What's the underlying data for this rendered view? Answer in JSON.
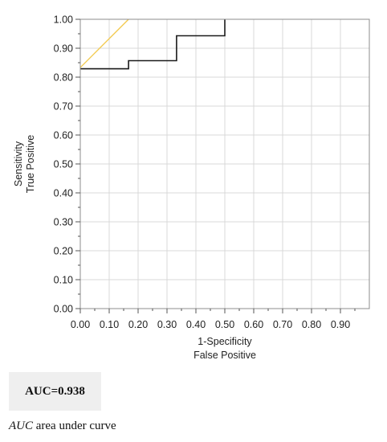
{
  "chart_data": {
    "type": "line",
    "xlabel_lines": [
      "1-Specificity",
      "False Positive"
    ],
    "ylabel_lines": [
      "Sensitivity",
      "True Positive"
    ],
    "xlim": [
      0,
      1
    ],
    "ylim": [
      0,
      1
    ],
    "x_ticks": [
      0.0,
      0.1,
      0.2,
      0.3,
      0.4,
      0.5,
      0.6,
      0.7,
      0.8,
      0.9
    ],
    "x_tick_labels": [
      "0.00",
      "0.10",
      "0.20",
      "0.30",
      "0.40",
      "0.50",
      "0.60",
      "0.70",
      "0.80",
      "0.90"
    ],
    "y_ticks": [
      0.0,
      0.1,
      0.2,
      0.3,
      0.4,
      0.5,
      0.6,
      0.7,
      0.8,
      0.9,
      1.0
    ],
    "y_tick_labels": [
      "0.00",
      "0.10",
      "0.20",
      "0.30",
      "0.40",
      "0.50",
      "0.60",
      "0.70",
      "0.80",
      "0.90",
      "1.00"
    ],
    "grid": true,
    "series": [
      {
        "kind": "roc-step",
        "color": "#1a1a1a",
        "x": [
          0.0,
          0.167,
          0.167,
          0.333,
          0.333,
          0.5,
          0.5
        ],
        "y": [
          0.829,
          0.829,
          0.857,
          0.857,
          0.943,
          0.943,
          1.0
        ]
      },
      {
        "kind": "tangent-line",
        "color": "#f2c94c",
        "x": [
          0.0,
          0.167
        ],
        "y": [
          0.833,
          1.0
        ]
      }
    ]
  },
  "auc_label": "AUC=0.938",
  "footnote": {
    "abbr": "AUC",
    "text": " area under curve"
  }
}
